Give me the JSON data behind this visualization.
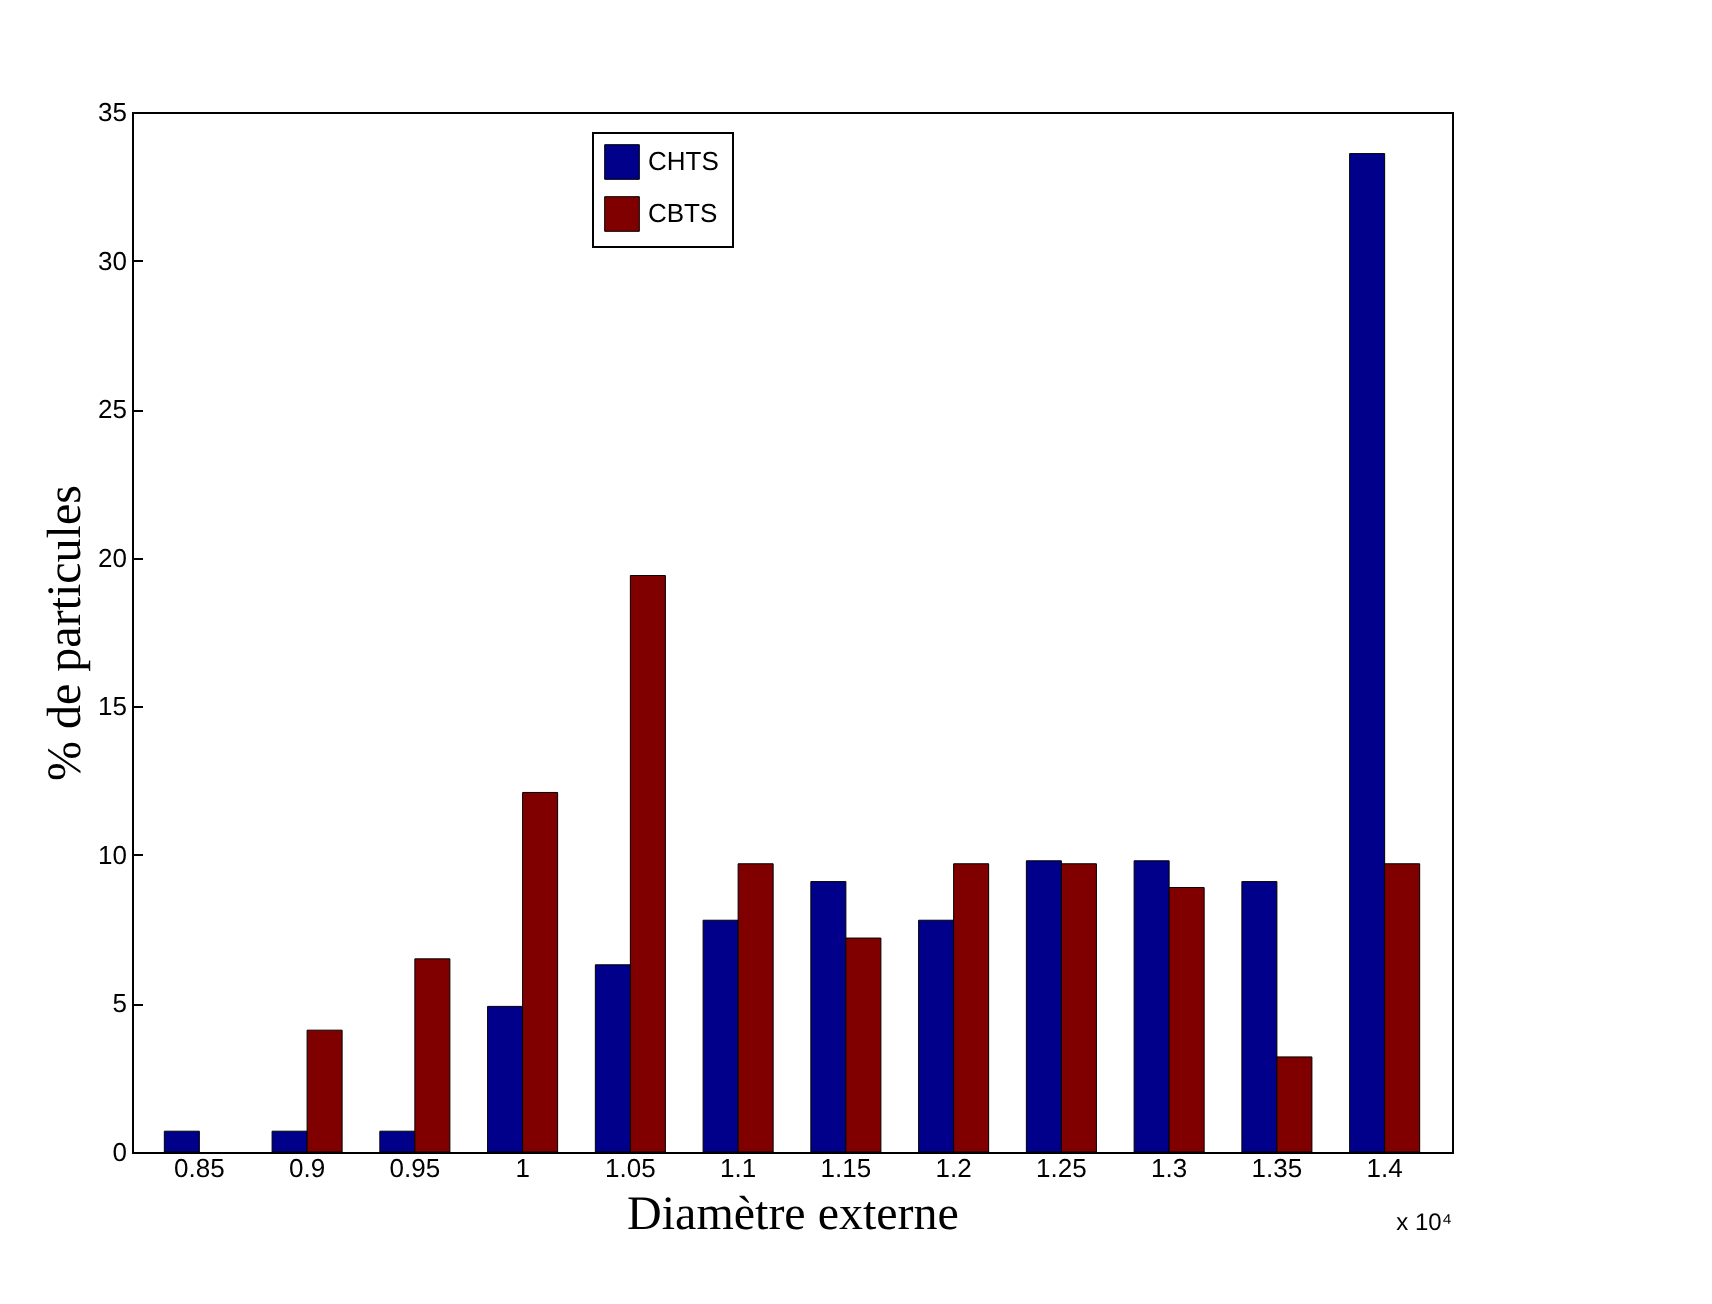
{
  "chart_data": {
    "type": "bar",
    "xlabel": "Diamètre externe",
    "ylabel": "% de particules",
    "categories": [
      "0.85",
      "0.9",
      "0.95",
      "1",
      "1.05",
      "1.1",
      "1.15",
      "1.2",
      "1.25",
      "1.3",
      "1.35",
      "1.4"
    ],
    "series": [
      {
        "name": "CHTS",
        "color": "#00008b",
        "values": [
          0.7,
          0.7,
          0.7,
          4.9,
          6.3,
          7.8,
          9.1,
          7.8,
          9.8,
          9.8,
          9.1,
          33.6
        ]
      },
      {
        "name": "CBTS",
        "color": "#800000",
        "values": [
          0,
          4.1,
          6.5,
          12.1,
          19.4,
          9.7,
          7.2,
          9.7,
          9.7,
          8.9,
          3.2,
          9.7
        ]
      }
    ],
    "ylim": [
      0,
      35
    ],
    "yticks": [
      0,
      5,
      10,
      15,
      20,
      25,
      30,
      35
    ],
    "grid": false,
    "legend": "top",
    "annotations": [
      "x 10⁴"
    ]
  }
}
